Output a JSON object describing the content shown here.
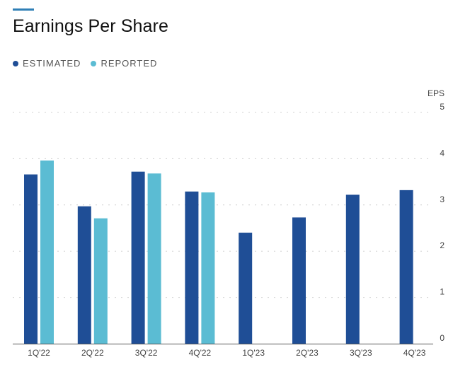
{
  "header": {
    "title": "Earnings Per Share"
  },
  "legend": {
    "items": [
      {
        "label": "ESTIMATED",
        "color": "#1f4e96"
      },
      {
        "label": "REPORTED",
        "color": "#5bbcd3"
      }
    ]
  },
  "colors": {
    "accent": "#2f7fb6",
    "grid": "#d0d0d0",
    "axis": "#555555"
  },
  "chart_data": {
    "type": "bar",
    "title": "Earnings Per Share",
    "xlabel": "",
    "ylabel": "EPS",
    "ylim": [
      0,
      5
    ],
    "yticks": [
      0,
      1,
      2,
      3,
      4,
      5
    ],
    "grid": true,
    "legend_position": "top-left",
    "categories": [
      "1Q'22",
      "2Q'22",
      "3Q'22",
      "4Q'22",
      "1Q'23",
      "2Q'23",
      "3Q'23",
      "4Q'23"
    ],
    "series": [
      {
        "name": "ESTIMATED",
        "color": "#1f4e96",
        "values": [
          3.66,
          2.97,
          3.72,
          3.29,
          2.4,
          2.73,
          3.22,
          3.32
        ]
      },
      {
        "name": "REPORTED",
        "color": "#5bbcd3",
        "values": [
          3.96,
          2.71,
          3.68,
          3.27,
          null,
          null,
          null,
          null
        ]
      }
    ]
  }
}
